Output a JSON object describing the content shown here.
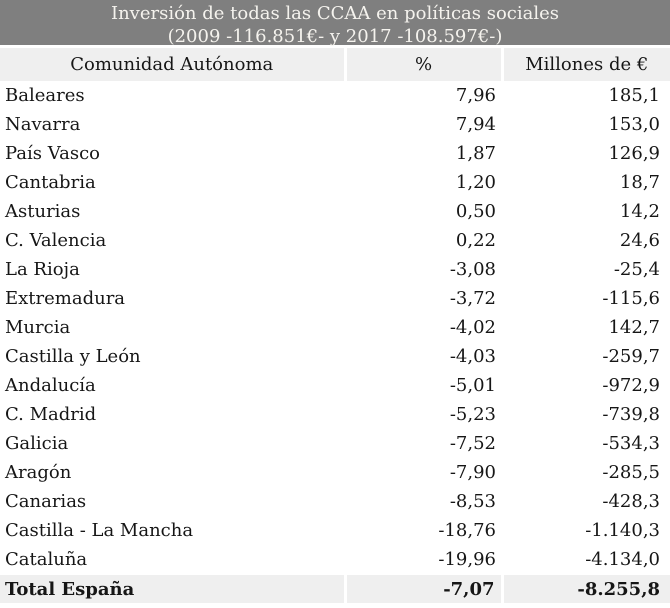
{
  "header": {
    "title_line1": "Inversión de todas las CCAA en políticas sociales",
    "title_line2": "(2009 -116.851€- y 2017 -108.597€-)"
  },
  "table": {
    "columns": [
      "Comunidad Autónoma",
      "%",
      "Millones de €"
    ],
    "rows": [
      {
        "name": "Baleares",
        "pct": "7,96",
        "millions": "185,1"
      },
      {
        "name": "Navarra",
        "pct": "7,94",
        "millions": "153,0"
      },
      {
        "name": "País Vasco",
        "pct": "1,87",
        "millions": "126,9"
      },
      {
        "name": "Cantabria",
        "pct": "1,20",
        "millions": "18,7"
      },
      {
        "name": "Asturias",
        "pct": "0,50",
        "millions": "14,2"
      },
      {
        "name": "C. Valencia",
        "pct": "0,22",
        "millions": "24,6"
      },
      {
        "name": "La Rioja",
        "pct": "-3,08",
        "millions": "-25,4"
      },
      {
        "name": "Extremadura",
        "pct": "-3,72",
        "millions": "-115,6"
      },
      {
        "name": "Murcia",
        "pct": "-4,02",
        "millions": "142,7"
      },
      {
        "name": "Castilla y León",
        "pct": "-4,03",
        "millions": "-259,7"
      },
      {
        "name": "Andalucía",
        "pct": "-5,01",
        "millions": "-972,9"
      },
      {
        "name": "C. Madrid",
        "pct": "-5,23",
        "millions": "-739,8"
      },
      {
        "name": "Galicia",
        "pct": "-7,52",
        "millions": "-534,3"
      },
      {
        "name": "Aragón",
        "pct": "-7,90",
        "millions": "-285,5"
      },
      {
        "name": "Canarias",
        "pct": "-8,53",
        "millions": "-428,3"
      },
      {
        "name": "Castilla - La Mancha",
        "pct": "-18,76",
        "millions": "-1.140,3"
      },
      {
        "name": "Cataluña",
        "pct": "-19,96",
        "millions": "-4.134,0"
      }
    ],
    "total": {
      "name": "Total España",
      "pct": "-7,07",
      "millions": "-8.255,8"
    }
  },
  "colors": {
    "title_bg": "#7f7f7f",
    "title_text": "#f5f3ee",
    "band_bg": "#efefef",
    "body_bg": "#ffffff",
    "text": "#161616",
    "separator": "#ffffff"
  },
  "chart_data": {
    "type": "table",
    "title": "Inversión de todas las CCAA en políticas sociales (2009 -116.851€- y 2017 -108.597€-)",
    "columns": [
      "Comunidad Autónoma",
      "%",
      "Millones de €"
    ],
    "categories": [
      "Baleares",
      "Navarra",
      "País Vasco",
      "Cantabria",
      "Asturias",
      "C. Valencia",
      "La Rioja",
      "Extremadura",
      "Murcia",
      "Castilla y León",
      "Andalucía",
      "C. Madrid",
      "Galicia",
      "Aragón",
      "Canarias",
      "Castilla - La Mancha",
      "Cataluña"
    ],
    "series": [
      {
        "name": "%",
        "values": [
          7.96,
          7.94,
          1.87,
          1.2,
          0.5,
          0.22,
          -3.08,
          -3.72,
          -4.02,
          -4.03,
          -5.01,
          -5.23,
          -7.52,
          -7.9,
          -8.53,
          -18.76,
          -19.96
        ]
      },
      {
        "name": "Millones de €",
        "values": [
          185.1,
          153.0,
          126.9,
          18.7,
          14.2,
          24.6,
          -25.4,
          -115.6,
          142.7,
          -259.7,
          -972.9,
          -739.8,
          -534.3,
          -285.5,
          -428.3,
          -1140.3,
          -4134.0
        ]
      }
    ],
    "total": {
      "name": "Total España",
      "pct": -7.07,
      "millones_eur": -8255.8
    }
  }
}
